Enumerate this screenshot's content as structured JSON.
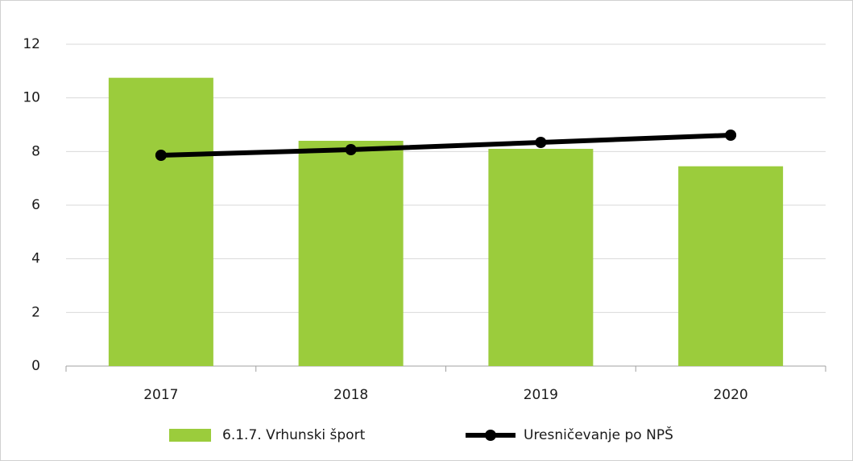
{
  "chart_data": {
    "type": "bar",
    "categories": [
      "2017",
      "2018",
      "2019",
      "2020"
    ],
    "series": [
      {
        "name": "6.1.7. Vrhunski šport",
        "type": "bar",
        "color": "#9bcc3c",
        "values": [
          10.75,
          8.4,
          8.1,
          7.45
        ]
      },
      {
        "name": "Uresničevanje po NPŠ",
        "type": "line",
        "color": "#000000",
        "values": [
          7.86,
          8.07,
          8.34,
          8.61
        ]
      }
    ],
    "ylim": [
      0,
      12
    ],
    "yticks": [
      0,
      2,
      4,
      6,
      8,
      10,
      12
    ],
    "grid": true,
    "legend": "bottom"
  }
}
